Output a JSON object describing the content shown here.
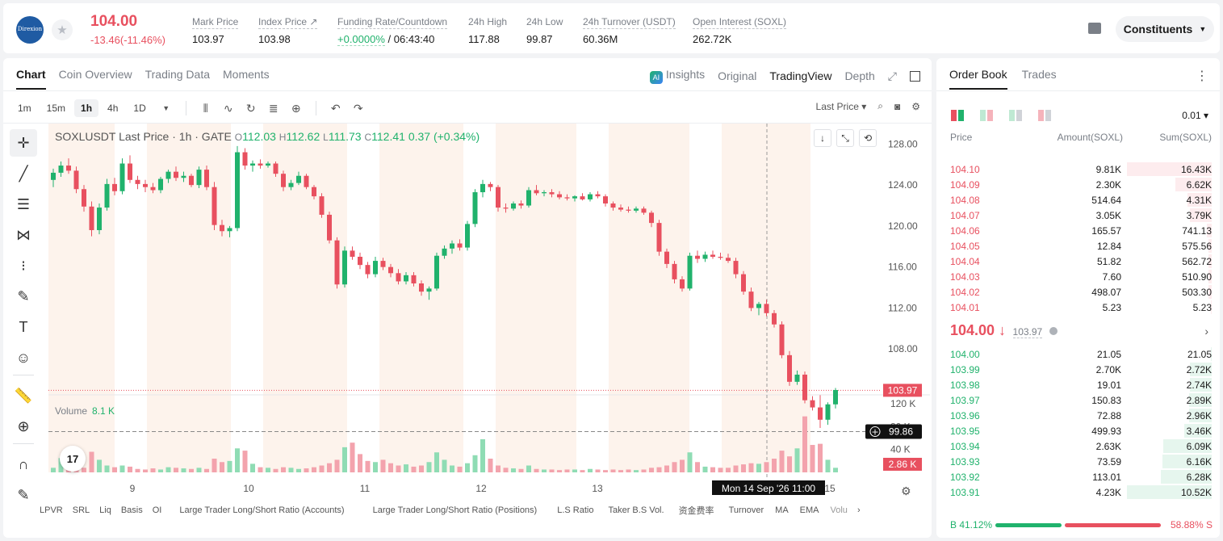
{
  "header": {
    "logo_text": "Direxion",
    "last_price": "104.00",
    "change": "-13.46(-11.46%)",
    "stats": [
      {
        "label": "Mark Price",
        "value": "103.97"
      },
      {
        "label": "Index Price ↗",
        "value": "103.98"
      },
      {
        "label": "Funding Rate/Countdown",
        "value_green": "+0.0000%",
        "value_rest": " / 06:43:40"
      },
      {
        "label": "24h High",
        "value": "117.88"
      },
      {
        "label": "24h Low",
        "value": "99.87"
      },
      {
        "label": "24h Turnover (USDT)",
        "value": "60.36M"
      },
      {
        "label": "Open Interest (SOXL)",
        "value": "262.72K"
      }
    ],
    "constituents_label": "Constituents"
  },
  "chart_tabs": [
    "Chart",
    "Coin Overview",
    "Trading Data",
    "Moments"
  ],
  "view_tabs": {
    "ai_badge": "AI",
    "insights": "Insights",
    "original": "Original",
    "tradingview": "TradingView",
    "depth": "Depth"
  },
  "timeframes": [
    "1m",
    "15m",
    "1h",
    "4h",
    "1D"
  ],
  "price_source": "Last Price ▾",
  "legend": {
    "title": "SOXLUSDT Last Price · 1h · GATE",
    "o": "112.03",
    "h": "112.62",
    "l": "111.73",
    "c": "112.41",
    "chg": "0.37 (+0.34%)"
  },
  "volume_legend": {
    "label": "Volume",
    "value": "8.1 K"
  },
  "tv_logo": "17",
  "price_axis": [
    "128.00",
    "124.00",
    "120.00",
    "116.00",
    "112.00",
    "108.00"
  ],
  "volume_axis": [
    "120 K",
    "80 K",
    "40 K"
  ],
  "time_axis": [
    "9",
    "10",
    "11",
    "12",
    "13",
    "15"
  ],
  "markers": {
    "mark_price": "103.97",
    "crosshair_price": "99.86",
    "volume_last": "2.86 K",
    "crosshair_time": "Mon 14 Sep '26   11:00"
  },
  "indicators": [
    "LPVR",
    "SRL",
    "Liq",
    "Basis",
    "OI",
    "Large Trader Long/Short Ratio (Accounts)",
    "Large Trader Long/Short Ratio (Positions)",
    "L.S Ratio",
    "Taker B.S Vol.",
    "资金费率",
    "Turnover",
    "MA",
    "EMA",
    "Volu"
  ],
  "book_tabs": [
    "Order Book",
    "Trades"
  ],
  "precision": "0.01 ▾",
  "book_headers": {
    "price": "Price",
    "amount": "Amount(SOXL)",
    "sum": "Sum(SOXL)"
  },
  "asks": [
    {
      "price": "104.10",
      "amount": "9.81K",
      "sum": "16.43K",
      "depth": 0.7
    },
    {
      "price": "104.09",
      "amount": "2.30K",
      "sum": "6.62K",
      "depth": 0.3
    },
    {
      "price": "104.08",
      "amount": "514.64",
      "sum": "4.31K",
      "depth": 0.2
    },
    {
      "price": "104.07",
      "amount": "3.05K",
      "sum": "3.79K",
      "depth": 0.18
    },
    {
      "price": "104.06",
      "amount": "165.57",
      "sum": "741.13",
      "depth": 0.04
    },
    {
      "price": "104.05",
      "amount": "12.84",
      "sum": "575.56",
      "depth": 0.03
    },
    {
      "price": "104.04",
      "amount": "51.82",
      "sum": "562.72",
      "depth": 0.03
    },
    {
      "price": "104.03",
      "amount": "7.60",
      "sum": "510.90",
      "depth": 0.03
    },
    {
      "price": "104.02",
      "amount": "498.07",
      "sum": "503.30",
      "depth": 0.03
    },
    {
      "price": "104.01",
      "amount": "5.23",
      "sum": "5.23",
      "depth": 0.005
    }
  ],
  "mid": {
    "price": "104.00 ↓",
    "mark": "103.97"
  },
  "bids": [
    {
      "price": "104.00",
      "amount": "21.05",
      "sum": "21.05",
      "depth": 0.005
    },
    {
      "price": "103.99",
      "amount": "2.70K",
      "sum": "2.72K",
      "depth": 0.18
    },
    {
      "price": "103.98",
      "amount": "19.01",
      "sum": "2.74K",
      "depth": 0.18
    },
    {
      "price": "103.97",
      "amount": "150.83",
      "sum": "2.89K",
      "depth": 0.19
    },
    {
      "price": "103.96",
      "amount": "72.88",
      "sum": "2.96K",
      "depth": 0.19
    },
    {
      "price": "103.95",
      "amount": "499.93",
      "sum": "3.46K",
      "depth": 0.23
    },
    {
      "price": "103.94",
      "amount": "2.63K",
      "sum": "6.09K",
      "depth": 0.4
    },
    {
      "price": "103.93",
      "amount": "73.59",
      "sum": "6.16K",
      "depth": 0.41
    },
    {
      "price": "103.92",
      "amount": "113.01",
      "sum": "6.28K",
      "depth": 0.42
    },
    {
      "price": "103.91",
      "amount": "4.23K",
      "sum": "10.52K",
      "depth": 0.7
    }
  ],
  "ratio": {
    "buy_label": "B 41.12%",
    "sell_label": "58.88% S",
    "buy": 41.12,
    "sell": 58.88
  },
  "chart_data": {
    "type": "candlestick",
    "title": "SOXLUSDT Last Price · 1h · GATE",
    "ylim": [
      104.0,
      130.0
    ],
    "volume_ylim": [
      0,
      130000
    ],
    "candles": [
      [
        124.5,
        125.6,
        123.8,
        125.2
      ],
      [
        125.2,
        126.3,
        124.8,
        125.9
      ],
      [
        125.9,
        126.6,
        125.1,
        125.4
      ],
      [
        125.4,
        125.8,
        123.2,
        123.6
      ],
      [
        123.6,
        124.0,
        121.4,
        121.9
      ],
      [
        121.9,
        122.4,
        119.0,
        119.6
      ],
      [
        119.6,
        122.2,
        119.2,
        121.8
      ],
      [
        121.8,
        124.6,
        121.5,
        124.1
      ],
      [
        124.1,
        124.7,
        123.0,
        123.4
      ],
      [
        123.4,
        126.6,
        123.1,
        126.1
      ],
      [
        126.1,
        126.9,
        124.2,
        124.5
      ],
      [
        124.5,
        124.9,
        123.6,
        124.1
      ],
      [
        124.1,
        124.5,
        123.3,
        123.8
      ],
      [
        123.8,
        124.2,
        123.2,
        123.5
      ],
      [
        123.5,
        124.8,
        123.2,
        124.6
      ],
      [
        124.6,
        125.5,
        124.2,
        125.3
      ],
      [
        125.3,
        125.8,
        124.4,
        124.7
      ],
      [
        124.7,
        125.3,
        124.3,
        124.9
      ],
      [
        124.9,
        125.1,
        123.8,
        124.0
      ],
      [
        124.0,
        125.8,
        123.7,
        125.5
      ],
      [
        125.5,
        125.9,
        123.5,
        123.8
      ],
      [
        123.8,
        124.3,
        119.6,
        120.1
      ],
      [
        120.1,
        120.6,
        119.0,
        119.5
      ],
      [
        119.5,
        120.0,
        118.9,
        119.8
      ],
      [
        119.8,
        127.8,
        119.5,
        127.2
      ],
      [
        127.2,
        127.6,
        125.5,
        125.9
      ],
      [
        125.9,
        126.4,
        125.3,
        126.1
      ],
      [
        126.1,
        126.5,
        125.6,
        125.9
      ],
      [
        125.9,
        126.3,
        125.7,
        126.1
      ],
      [
        126.1,
        126.3,
        124.8,
        125.1
      ],
      [
        125.1,
        125.4,
        123.4,
        123.8
      ],
      [
        123.8,
        124.5,
        123.5,
        124.2
      ],
      [
        124.2,
        125.3,
        124.0,
        124.9
      ],
      [
        124.9,
        125.1,
        123.6,
        123.8
      ],
      [
        123.8,
        124.0,
        122.6,
        122.9
      ],
      [
        122.9,
        123.2,
        120.8,
        121.1
      ],
      [
        121.1,
        121.4,
        118.3,
        118.6
      ],
      [
        118.6,
        118.9,
        113.9,
        114.3
      ],
      [
        114.3,
        118.0,
        114.0,
        117.6
      ],
      [
        117.6,
        118.0,
        116.7,
        117.0
      ],
      [
        117.0,
        117.4,
        115.8,
        116.2
      ],
      [
        116.2,
        116.5,
        114.9,
        115.3
      ],
      [
        115.3,
        117.0,
        115.0,
        116.6
      ],
      [
        116.6,
        116.9,
        115.7,
        116.0
      ],
      [
        116.0,
        116.3,
        115.0,
        115.4
      ],
      [
        115.4,
        115.8,
        114.3,
        114.6
      ],
      [
        114.6,
        115.5,
        114.3,
        115.2
      ],
      [
        115.2,
        115.5,
        114.1,
        114.4
      ],
      [
        114.4,
        114.7,
        113.2,
        113.6
      ],
      [
        113.6,
        114.1,
        112.8,
        113.9
      ],
      [
        113.9,
        117.4,
        113.7,
        117.1
      ],
      [
        117.1,
        118.1,
        116.8,
        117.8
      ],
      [
        117.8,
        118.6,
        117.3,
        118.3
      ],
      [
        118.3,
        118.7,
        117.6,
        117.9
      ],
      [
        117.9,
        120.5,
        117.6,
        120.2
      ],
      [
        120.2,
        123.6,
        119.9,
        123.3
      ],
      [
        123.3,
        124.5,
        122.8,
        124.1
      ],
      [
        124.1,
        124.3,
        123.4,
        123.8
      ],
      [
        123.8,
        124.0,
        121.4,
        121.8
      ],
      [
        121.8,
        122.2,
        121.3,
        121.7
      ],
      [
        121.7,
        122.4,
        121.5,
        122.2
      ],
      [
        122.2,
        122.5,
        121.7,
        122.0
      ],
      [
        122.0,
        123.8,
        121.8,
        123.5
      ],
      [
        123.5,
        124.0,
        123.0,
        123.2
      ],
      [
        123.2,
        123.5,
        122.9,
        123.3
      ],
      [
        123.3,
        123.6,
        122.8,
        123.1
      ],
      [
        123.1,
        123.4,
        122.6,
        122.8
      ],
      [
        122.8,
        123.1,
        122.5,
        122.7
      ],
      [
        122.7,
        123.0,
        122.4,
        122.9
      ],
      [
        122.9,
        123.2,
        122.5,
        122.6
      ],
      [
        122.6,
        123.3,
        122.4,
        123.1
      ],
      [
        123.1,
        123.4,
        122.7,
        122.9
      ],
      [
        122.9,
        123.1,
        121.9,
        122.2
      ],
      [
        122.2,
        122.4,
        121.5,
        121.8
      ],
      [
        121.8,
        122.1,
        121.4,
        121.6
      ],
      [
        121.6,
        121.9,
        121.3,
        121.5
      ],
      [
        121.5,
        121.9,
        121.3,
        121.7
      ],
      [
        121.7,
        121.9,
        121.1,
        121.3
      ],
      [
        121.3,
        121.5,
        119.9,
        120.3
      ],
      [
        120.3,
        120.6,
        117.1,
        117.5
      ],
      [
        117.5,
        117.8,
        115.9,
        116.3
      ],
      [
        116.3,
        116.6,
        114.4,
        114.8
      ],
      [
        114.8,
        115.1,
        113.6,
        113.9
      ],
      [
        113.9,
        117.4,
        113.7,
        117.1
      ],
      [
        117.1,
        117.6,
        116.4,
        116.8
      ],
      [
        116.8,
        117.5,
        116.5,
        117.2
      ],
      [
        117.2,
        117.6,
        116.8,
        117.0
      ],
      [
        117.0,
        117.4,
        116.7,
        116.9
      ],
      [
        116.9,
        117.3,
        116.4,
        116.6
      ],
      [
        116.6,
        116.9,
        114.9,
        115.3
      ],
      [
        115.3,
        115.6,
        113.3,
        113.6
      ],
      [
        113.6,
        114.0,
        111.7,
        112.0
      ],
      [
        112.0,
        112.6,
        111.3,
        112.4
      ],
      [
        112.4,
        112.8,
        111.2,
        111.5
      ],
      [
        111.5,
        111.8,
        110.1,
        110.4
      ],
      [
        110.4,
        110.7,
        107.1,
        107.4
      ],
      [
        107.4,
        107.8,
        104.4,
        104.8
      ],
      [
        104.8,
        105.9,
        104.5,
        105.5
      ],
      [
        105.5,
        105.8,
        102.7,
        103.0
      ],
      [
        103.0,
        103.4,
        102.0,
        102.3
      ],
      [
        102.3,
        103.5,
        100.3,
        101.1
      ],
      [
        101.1,
        102.8,
        100.6,
        102.6
      ],
      [
        102.6,
        104.2,
        102.2,
        104.0
      ]
    ],
    "volumes": [
      8,
      25,
      14,
      16,
      8,
      36,
      22,
      12,
      9,
      12,
      10,
      6,
      5,
      7,
      5,
      9,
      8,
      7,
      6,
      8,
      6,
      24,
      18,
      20,
      42,
      38,
      15,
      9,
      8,
      6,
      9,
      8,
      6,
      7,
      9,
      12,
      16,
      22,
      44,
      52,
      32,
      20,
      18,
      22,
      16,
      12,
      14,
      10,
      12,
      18,
      35,
      22,
      12,
      10,
      16,
      30,
      58,
      24,
      12,
      8,
      7,
      6,
      12,
      6,
      5,
      5,
      4,
      5,
      5,
      4,
      6,
      5,
      4,
      5,
      4,
      5,
      4,
      5,
      8,
      9,
      12,
      18,
      22,
      35,
      18,
      10,
      9,
      8,
      8,
      12,
      14,
      16,
      15,
      18,
      24,
      38,
      28,
      42,
      98,
      48,
      50,
      22,
      8
    ]
  }
}
